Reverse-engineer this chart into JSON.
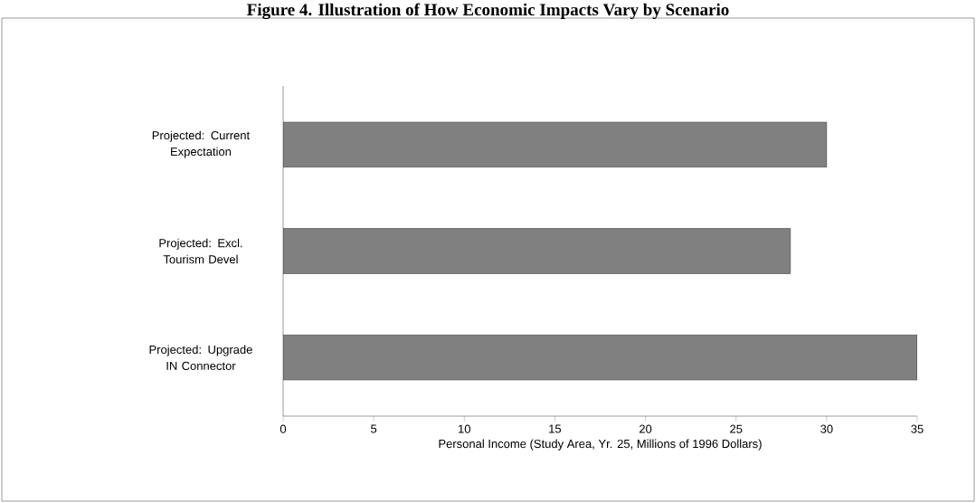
{
  "chart_data": {
    "type": "bar",
    "orientation": "horizontal",
    "title": "Figure 4. Illustration of How Economic Impacts Vary by Scenario",
    "xlabel": "Personal Income (Study Area, Yr. 25, Millions of 1996 Dollars)",
    "categories": [
      "Projected: Current Expectation",
      "Projected: Excl. Tourism Devel",
      "Projected: Upgrade IN Connector"
    ],
    "values": [
      30,
      28,
      35
    ],
    "color": "#808080",
    "xlim": [
      0,
      35
    ],
    "xticks": [
      0,
      5,
      10,
      15,
      20,
      25,
      30,
      35
    ],
    "grid": false
  }
}
